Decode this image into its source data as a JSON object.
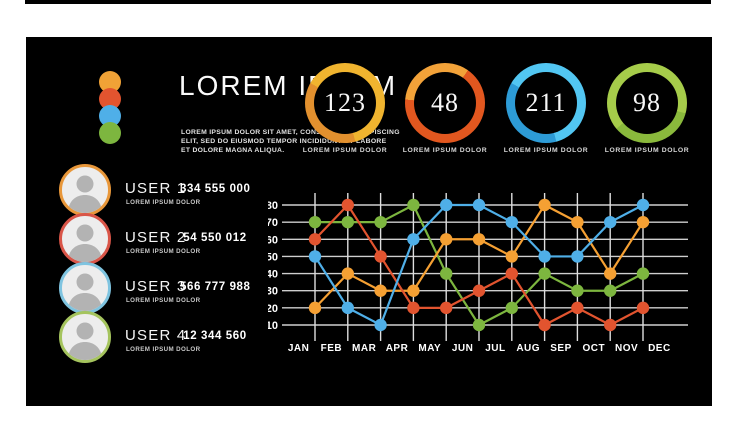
{
  "brand": {
    "title": "LOREM IPSUM",
    "subtitle_lines": [
      "LOREM IPSUM DOLOR SIT AMET, CONSECTETUR ADIPISCING",
      "ELIT, SED DO EIUSMOD TEMPOR INCIDIDUNT UT LABORE",
      "ET DOLORE MAGNA ALIQUA."
    ],
    "dot_colors": [
      "#f0a236",
      "#e2542f",
      "#4fafe8",
      "#7db63f"
    ]
  },
  "gauges": [
    {
      "value": "123",
      "label": "LOREM IPSUM DOLOR",
      "color": "#f0b42f",
      "accent": "#e2902e"
    },
    {
      "value": "48",
      "label": "LOREM IPSUM DOLOR",
      "color": "#e2571f",
      "accent": "#f2a239"
    },
    {
      "value": "211",
      "label": "LOREM IPSUM DOLOR",
      "color": "#52c6f2",
      "accent": "#2d9bd6"
    },
    {
      "value": "98",
      "label": "LOREM IPSUM DOLOR",
      "color": "#a6cc4a",
      "accent": "#8ab93c"
    }
  ],
  "users": [
    {
      "name": "USER 1",
      "subtitle": "LOREM IPSUM DOLOR",
      "number": "334 555 000",
      "ring": "#e8973a"
    },
    {
      "name": "USER 2",
      "subtitle": "LOREM IPSUM DOLOR",
      "number": "54 550 012",
      "ring": "#d95548"
    },
    {
      "name": "USER 3",
      "subtitle": "LOREM IPSUM DOLOR",
      "number": "566 777 988",
      "ring": "#7fc4e0"
    },
    {
      "name": "USER 4",
      "subtitle": "LOREM IPSUM DOLOR",
      "number": "12 344 560",
      "ring": "#a5c45e"
    }
  ],
  "chart_data": {
    "type": "line",
    "title": "",
    "x_labels": [
      "JAN",
      "FEB",
      "MAR",
      "APR",
      "MAY",
      "JUN",
      "JUL",
      "AUG",
      "SEP",
      "OCT",
      "NOV",
      "DEC"
    ],
    "layout_note": "11 data columns sit on the vertical gridlines between the 12 month labels",
    "y_ticks": [
      10,
      20,
      30,
      40,
      50,
      60,
      70,
      80
    ],
    "ylim": [
      5,
      85
    ],
    "grid": true,
    "legend": false,
    "series": [
      {
        "name": "green",
        "color": "#7db63f",
        "values": [
          70,
          70,
          70,
          80,
          40,
          10,
          20,
          40,
          30,
          30,
          40
        ]
      },
      {
        "name": "orange",
        "color": "#f5a033",
        "values": [
          20,
          40,
          30,
          30,
          60,
          60,
          50,
          80,
          70,
          40,
          70
        ]
      },
      {
        "name": "red",
        "color": "#e2542f",
        "values": [
          60,
          80,
          50,
          20,
          20,
          30,
          40,
          10,
          20,
          10,
          20
        ]
      },
      {
        "name": "blue",
        "color": "#4fafe8",
        "values": [
          50,
          20,
          10,
          60,
          80,
          80,
          70,
          50,
          50,
          70,
          80
        ]
      }
    ]
  }
}
